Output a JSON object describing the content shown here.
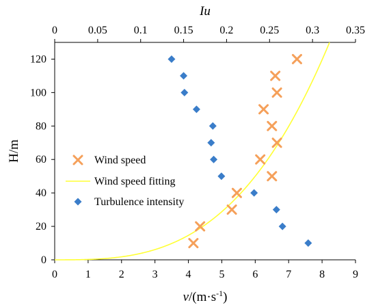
{
  "chart_data": {
    "type": "scatter",
    "x_bottom": {
      "label_main": "v",
      "label_unit": "/(m·s",
      "label_exp": "-1",
      "label_close": ")",
      "range": [
        0,
        9
      ],
      "ticks": [
        "0",
        "1",
        "2",
        "3",
        "4",
        "5",
        "6",
        "7",
        "8",
        "9"
      ]
    },
    "x_top": {
      "label": "Iu",
      "range": [
        0,
        0.35
      ],
      "ticks": [
        "0",
        "0.05",
        "0.1",
        "0.15",
        "0.2",
        "0.25",
        "0.3",
        "0.35"
      ]
    },
    "y": {
      "label": "H/m",
      "range": [
        0,
        130
      ],
      "ticks": [
        "0",
        "20",
        "40",
        "60",
        "80",
        "100",
        "120"
      ]
    },
    "grid": false,
    "legend_position": "left-middle",
    "series": [
      {
        "name": "Wind speed",
        "marker": "x",
        "color": "#f5a05a",
        "axis": "bottom",
        "points": [
          [
            4.15,
            10
          ],
          [
            4.35,
            20
          ],
          [
            5.3,
            30
          ],
          [
            5.45,
            40
          ],
          [
            6.5,
            50
          ],
          [
            6.15,
            60
          ],
          [
            6.65,
            70
          ],
          [
            6.5,
            80
          ],
          [
            6.25,
            90
          ],
          [
            6.65,
            100
          ],
          [
            6.6,
            110
          ],
          [
            7.25,
            120
          ]
        ]
      },
      {
        "name": "Wind speed fitting",
        "marker": "line",
        "color": "#ffff33",
        "axis": "bottom",
        "curve": {
          "v_ref": 6.0,
          "h_ref": 50,
          "alpha": 0.33
        }
      },
      {
        "name": "Turbulence intensity",
        "marker": "diamond",
        "color": "#3a7dc9",
        "axis": "top",
        "points": [
          [
            0.295,
            10
          ],
          [
            0.265,
            20
          ],
          [
            0.258,
            30
          ],
          [
            0.232,
            40
          ],
          [
            0.194,
            50
          ],
          [
            0.185,
            60
          ],
          [
            0.182,
            70
          ],
          [
            0.184,
            80
          ],
          [
            0.165,
            90
          ],
          [
            0.151,
            100
          ],
          [
            0.15,
            110
          ],
          [
            0.136,
            120
          ]
        ]
      }
    ]
  }
}
